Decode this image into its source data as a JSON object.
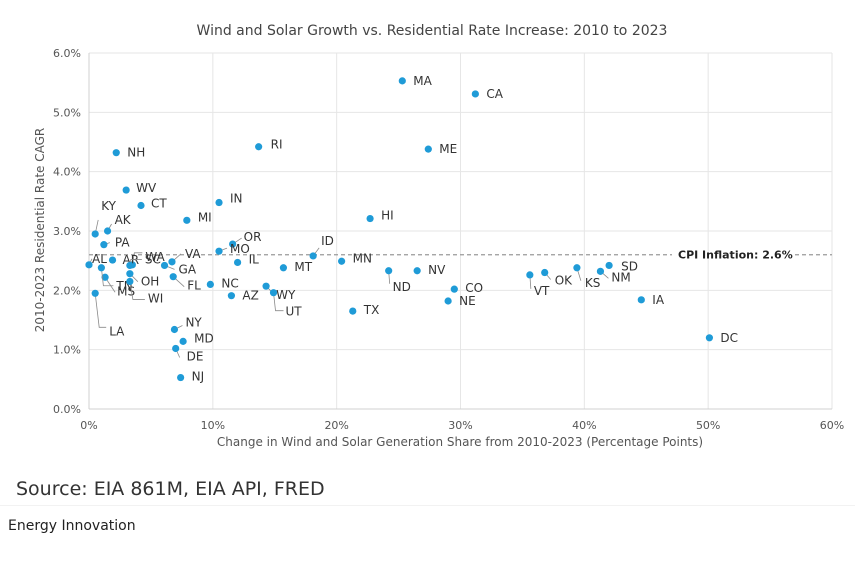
{
  "chart_data": {
    "type": "scatter",
    "title": "Wind and Solar Growth vs. Residential Rate Increase: 2010 to 2023",
    "xlabel": "Change in Wind and Solar Generation Share from 2010-2023 (Percentage Points)",
    "ylabel": "2010-2023 Residential Rate CAGR",
    "xlim": [
      0,
      60
    ],
    "ylim": [
      0,
      6
    ],
    "x_ticks": [
      "0%",
      "10%",
      "20%",
      "30%",
      "40%",
      "50%",
      "60%"
    ],
    "y_ticks": [
      "0.0%",
      "1.0%",
      "2.0%",
      "3.0%",
      "4.0%",
      "5.0%",
      "6.0%"
    ],
    "grid": true,
    "reference_line": {
      "label": "CPI Inflation: 2.6%",
      "value": 2.6
    },
    "point_color": "#1f9bd7",
    "points": [
      {
        "label": "MA",
        "x": 25.3,
        "y": 5.53
      },
      {
        "label": "CA",
        "x": 31.2,
        "y": 5.31
      },
      {
        "label": "ME",
        "x": 27.4,
        "y": 4.38
      },
      {
        "label": "RI",
        "x": 13.7,
        "y": 4.42
      },
      {
        "label": "NH",
        "x": 2.2,
        "y": 4.32
      },
      {
        "label": "WV",
        "x": 3.0,
        "y": 3.69
      },
      {
        "label": "CT",
        "x": 4.2,
        "y": 3.43
      },
      {
        "label": "IN",
        "x": 10.5,
        "y": 3.48
      },
      {
        "label": "HI",
        "x": 22.7,
        "y": 3.21
      },
      {
        "label": "KY",
        "x": 0.5,
        "y": 2.95
      },
      {
        "label": "AK",
        "x": 1.5,
        "y": 3.0
      },
      {
        "label": "MI",
        "x": 7.9,
        "y": 3.18
      },
      {
        "label": "PA",
        "x": 1.2,
        "y": 2.77
      },
      {
        "label": "WA",
        "x": 3.5,
        "y": 2.43
      },
      {
        "label": "OR",
        "x": 11.6,
        "y": 2.78
      },
      {
        "label": "AR",
        "x": 1.9,
        "y": 2.51
      },
      {
        "label": "MO",
        "x": 10.5,
        "y": 2.66
      },
      {
        "label": "SC",
        "x": 3.3,
        "y": 2.42
      },
      {
        "label": "VA",
        "x": 6.7,
        "y": 2.48
      },
      {
        "label": "ID",
        "x": 18.1,
        "y": 2.58
      },
      {
        "label": "AL",
        "x": 0.0,
        "y": 2.43
      },
      {
        "label": "IL",
        "x": 12.0,
        "y": 2.47
      },
      {
        "label": "MN",
        "x": 20.4,
        "y": 2.49
      },
      {
        "label": "MT",
        "x": 15.7,
        "y": 2.38
      },
      {
        "label": "NV",
        "x": 26.5,
        "y": 2.33
      },
      {
        "label": "ND",
        "x": 24.2,
        "y": 2.33
      },
      {
        "label": "SD",
        "x": 42.0,
        "y": 2.42
      },
      {
        "label": "KS",
        "x": 39.4,
        "y": 2.38
      },
      {
        "label": "OK",
        "x": 36.8,
        "y": 2.3
      },
      {
        "label": "NM",
        "x": 41.3,
        "y": 2.32
      },
      {
        "label": "VT",
        "x": 35.6,
        "y": 2.26
      },
      {
        "label": "GA",
        "x": 6.1,
        "y": 2.42
      },
      {
        "label": "OH",
        "x": 3.3,
        "y": 2.28
      },
      {
        "label": "MS",
        "x": 1.3,
        "y": 2.22
      },
      {
        "label": "FL",
        "x": 6.8,
        "y": 2.23
      },
      {
        "label": "WY",
        "x": 14.3,
        "y": 2.07
      },
      {
        "label": "CO",
        "x": 29.5,
        "y": 2.02
      },
      {
        "label": "NC",
        "x": 9.8,
        "y": 2.1
      },
      {
        "label": "NE",
        "x": 29.0,
        "y": 1.82
      },
      {
        "label": "IA",
        "x": 44.6,
        "y": 1.84
      },
      {
        "label": "TN",
        "x": 1.0,
        "y": 2.38
      },
      {
        "label": "WI",
        "x": 3.3,
        "y": 2.15
      },
      {
        "label": "AZ",
        "x": 11.5,
        "y": 1.91
      },
      {
        "label": "UT",
        "x": 14.9,
        "y": 1.96
      },
      {
        "label": "LA",
        "x": 0.5,
        "y": 1.95
      },
      {
        "label": "TX",
        "x": 21.3,
        "y": 1.65
      },
      {
        "label": "NY",
        "x": 6.9,
        "y": 1.34
      },
      {
        "label": "MD",
        "x": 7.6,
        "y": 1.14
      },
      {
        "label": "DE",
        "x": 7.0,
        "y": 1.02
      },
      {
        "label": "DC",
        "x": 50.1,
        "y": 1.2
      },
      {
        "label": "NJ",
        "x": 7.4,
        "y": 0.53
      }
    ]
  },
  "footer": {
    "source": "Source: EIA 861M, EIA API, FRED",
    "publisher": "Energy Innovation"
  }
}
